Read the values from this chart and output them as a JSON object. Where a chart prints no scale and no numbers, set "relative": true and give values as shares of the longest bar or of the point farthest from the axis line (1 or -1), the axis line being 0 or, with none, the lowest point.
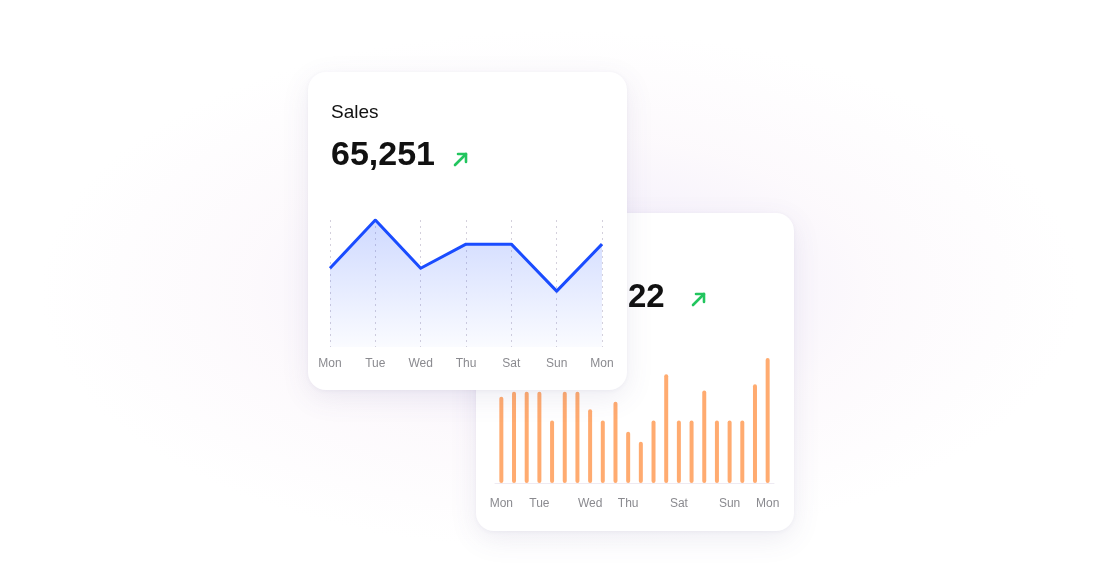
{
  "chart_data": [
    {
      "type": "area",
      "title": "Sales",
      "subtitle": "65,251",
      "categories": [
        "Mon",
        "Tue",
        "Wed",
        "Thu",
        "Sat",
        "Sun",
        "Mon"
      ],
      "values": [
        0.62,
        1,
        0.62,
        0.81,
        0.81,
        0.44,
        0.81
      ],
      "color": "#1a4cff",
      "relative": true,
      "grid": "x"
    },
    {
      "type": "bar",
      "subtitle": "22",
      "categories": [
        "Mon",
        null,
        null,
        "Tue",
        null,
        null,
        null,
        "Wed",
        null,
        null,
        "Thu",
        null,
        null,
        null,
        "Sat",
        null,
        null,
        null,
        "Sun",
        null,
        null,
        "Mon"
      ],
      "values": [
        0.69,
        0.73,
        0.73,
        0.73,
        0.5,
        0.73,
        0.73,
        0.59,
        0.5,
        0.65,
        0.41,
        0.33,
        0.5,
        0.87,
        0.5,
        0.5,
        0.74,
        0.5,
        0.5,
        0.5,
        0.79,
        1
      ],
      "color": "#ffab70",
      "relative": true
    }
  ]
}
